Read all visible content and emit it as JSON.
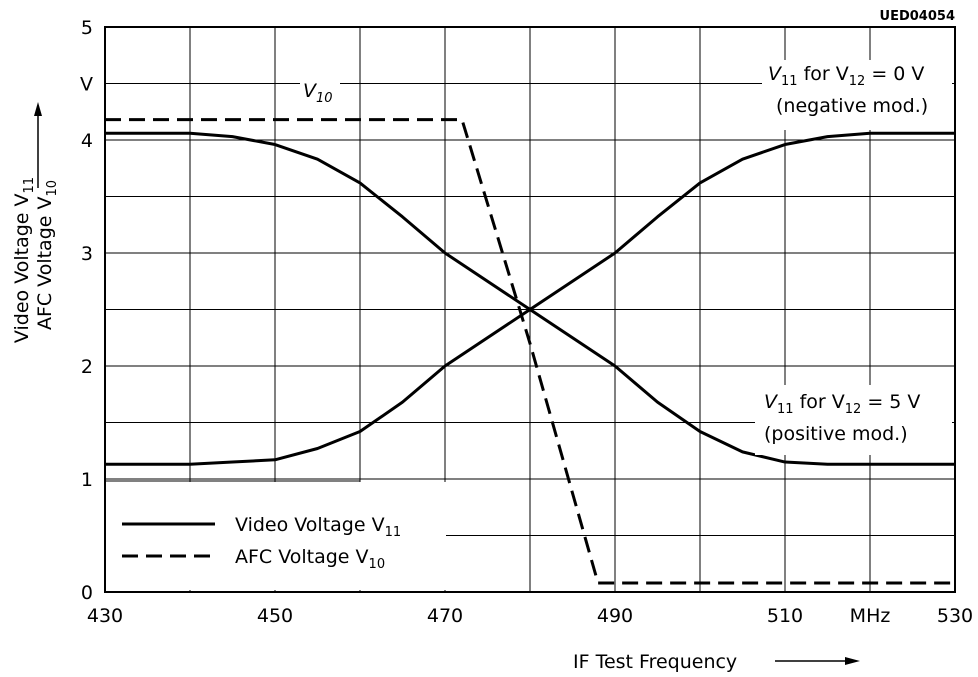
{
  "figure_code": "UED04054",
  "chart_data": {
    "type": "line",
    "xlabel": "IF Test Frequency",
    "xunit": "MHz",
    "ylabel_line1": "Video Voltage V11",
    "ylabel_line2": "AFC Voltage V10",
    "yunit": "V",
    "xlim": [
      430,
      530
    ],
    "ylim": [
      0,
      5
    ],
    "grid": true,
    "x_ticks": [
      {
        "value": 430,
        "label": "430"
      },
      {
        "value": 450,
        "label": "450"
      },
      {
        "value": 470,
        "label": "470"
      },
      {
        "value": 490,
        "label": "490"
      },
      {
        "value": 510,
        "label": "510"
      },
      {
        "value": 520,
        "label": "MHz"
      },
      {
        "value": 530,
        "label": "530"
      }
    ],
    "y_ticks": [
      {
        "value": 0,
        "label": "0"
      },
      {
        "value": 1,
        "label": "1"
      },
      {
        "value": 2,
        "label": "2"
      },
      {
        "value": 3,
        "label": "3"
      },
      {
        "value": 4,
        "label": "4"
      },
      {
        "value": 4.5,
        "label": "V"
      },
      {
        "value": 5,
        "label": "5"
      }
    ],
    "series": [
      {
        "name": "Video Voltage V11",
        "style": "solid",
        "x": [
          430,
          440,
          445,
          450,
          455,
          460,
          465,
          470,
          480,
          490,
          495,
          500,
          505,
          510,
          515,
          520,
          530
        ],
        "y": [
          4.06,
          4.06,
          4.03,
          3.96,
          3.83,
          3.62,
          3.32,
          3.0,
          2.5,
          2.0,
          1.68,
          1.42,
          1.24,
          1.15,
          1.13,
          1.13,
          1.13
        ]
      },
      {
        "name": "Video Voltage V11",
        "style": "solid",
        "x": [
          430,
          440,
          445,
          450,
          455,
          460,
          465,
          470,
          480,
          490,
          495,
          500,
          505,
          510,
          515,
          520,
          530
        ],
        "y": [
          1.13,
          1.13,
          1.15,
          1.17,
          1.27,
          1.42,
          1.68,
          2.0,
          2.5,
          3.0,
          3.32,
          3.62,
          3.83,
          3.96,
          4.03,
          4.06,
          4.06
        ]
      },
      {
        "name": "AFC Voltage V10",
        "style": "dashed",
        "x": [
          430,
          472,
          480,
          488,
          530
        ],
        "y": [
          4.18,
          4.18,
          2.2,
          0.08,
          0.08
        ]
      }
    ],
    "annotations": [
      {
        "id": "v10",
        "main": "V",
        "sub": "10"
      },
      {
        "id": "neg",
        "pre": "V",
        "sub1": "11",
        "mid": " for V",
        "sub2": "12",
        "post": " = 0 V",
        "line2": "(negative mod.)"
      },
      {
        "id": "pos",
        "pre": "V",
        "sub1": "11",
        "mid": " for V",
        "sub2": "12",
        "post": " = 5 V",
        "line2": "(positive mod.)"
      }
    ],
    "legend": {
      "placement": "bottom-left",
      "entries": [
        {
          "label": "Video Voltage V",
          "sub": "11",
          "style": "solid"
        },
        {
          "label": "AFC Voltage V",
          "sub": "10",
          "style": "dashed"
        }
      ]
    }
  }
}
